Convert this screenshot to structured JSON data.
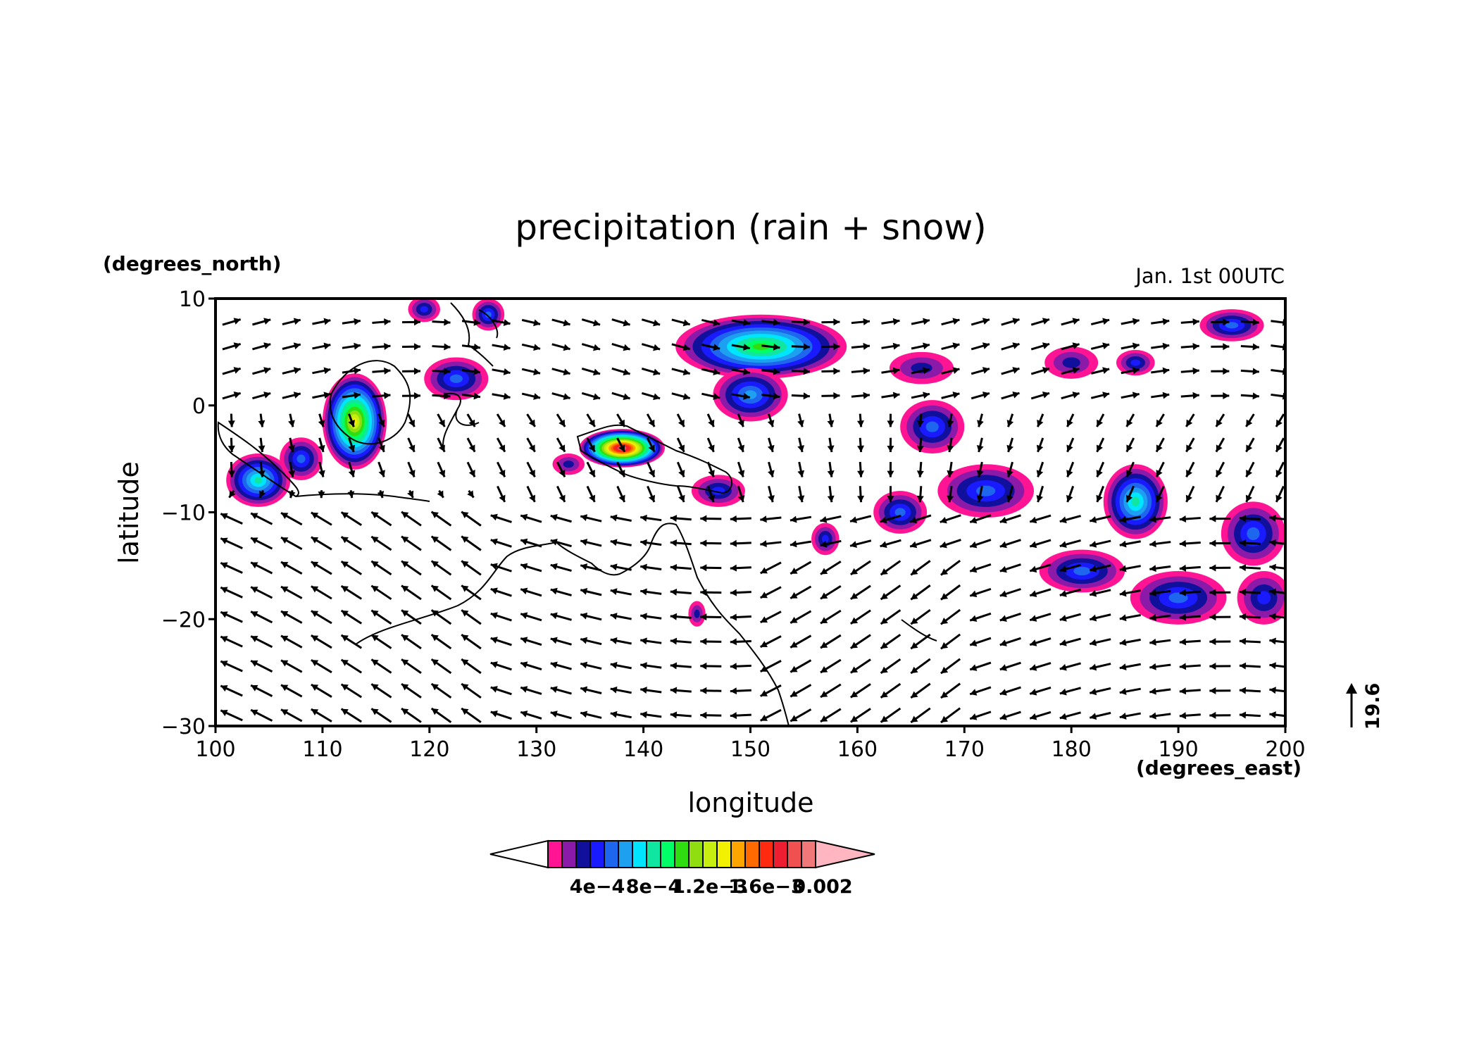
{
  "title": "precipitation (rain + snow)",
  "timestamp": "Jan. 1st 00UTC",
  "y_unit_label": "(degrees_north)",
  "x_unit_label": "(degrees_east)",
  "ylabel": "latitude",
  "xlabel": "longitude",
  "reference_vector_label": "19.6",
  "chart_data": {
    "type": "heatmap",
    "projection": "lon-lat",
    "xlim": [
      100,
      200
    ],
    "ylim": [
      -30,
      10
    ],
    "x_ticks": [
      100,
      110,
      120,
      130,
      140,
      150,
      160,
      170,
      180,
      190,
      200
    ],
    "x_tick_labels": [
      "100",
      "110",
      "120",
      "130",
      "140",
      "150",
      "160",
      "170",
      "180",
      "190",
      "200"
    ],
    "y_ticks": [
      -30,
      -20,
      -10,
      0,
      10
    ],
    "y_tick_labels": [
      "−30",
      "−20",
      "−10",
      "0",
      "10"
    ],
    "colorbar": {
      "levels": [
        0.0001,
        0.0002,
        0.0003,
        0.0004,
        0.0005,
        0.0006,
        0.0007,
        0.0008,
        0.0009,
        0.001,
        0.0011,
        0.0012,
        0.0013,
        0.0014,
        0.0015,
        0.0016,
        0.0017,
        0.0018,
        0.0019,
        0.002
      ],
      "tick_labels": [
        "4e−4",
        "8e−4",
        "1.2e−3",
        "1.6e−3",
        "0.002"
      ],
      "tick_values": [
        0.0004,
        0.0008,
        0.0012,
        0.0016,
        0.002
      ],
      "under_color": "#ffffff",
      "over_color": "#ffb6c1",
      "colors": [
        "#ff1493",
        "#8b1aa8",
        "#10109c",
        "#1a1aff",
        "#1e66ee",
        "#1ea0f0",
        "#00e5ff",
        "#10e6a0",
        "#00ff66",
        "#30dd10",
        "#90dd10",
        "#c6ee10",
        "#f0f000",
        "#ffa500",
        "#ff6a00",
        "#ff2a10",
        "#ee1e32",
        "#f05050",
        "#f07878",
        "#f4a0a0"
      ]
    },
    "precipitation_cells": [
      {
        "lon": 113.0,
        "lat": -1.5,
        "rx": 3.0,
        "ry": 4.5,
        "peak": 0.0013
      },
      {
        "lon": 138.0,
        "lat": -4.0,
        "rx": 4.0,
        "ry": 1.8,
        "peak": 0.0019
      },
      {
        "lon": 151.0,
        "lat": 5.5,
        "rx": 8.0,
        "ry": 3.0,
        "peak": 0.001
      },
      {
        "lon": 150.0,
        "lat": 1.0,
        "rx": 3.5,
        "ry": 2.5,
        "peak": 0.0006
      },
      {
        "lon": 104.0,
        "lat": -7.0,
        "rx": 3.0,
        "ry": 2.5,
        "peak": 0.0008
      },
      {
        "lon": 108.0,
        "lat": -5.0,
        "rx": 2.0,
        "ry": 2.0,
        "peak": 0.0005
      },
      {
        "lon": 122.5,
        "lat": 2.5,
        "rx": 3.0,
        "ry": 2.0,
        "peak": 0.0005
      },
      {
        "lon": 125.5,
        "lat": 8.5,
        "rx": 1.5,
        "ry": 1.5,
        "peak": 0.0005
      },
      {
        "lon": 147.0,
        "lat": -8.0,
        "rx": 2.5,
        "ry": 1.5,
        "peak": 0.0004
      },
      {
        "lon": 167.0,
        "lat": -2.0,
        "rx": 3.0,
        "ry": 2.5,
        "peak": 0.0005
      },
      {
        "lon": 172.0,
        "lat": -8.0,
        "rx": 4.5,
        "ry": 2.5,
        "peak": 0.0005
      },
      {
        "lon": 164.0,
        "lat": -10.0,
        "rx": 2.5,
        "ry": 2.0,
        "peak": 0.0005
      },
      {
        "lon": 186.0,
        "lat": -9.0,
        "rx": 3.0,
        "ry": 3.5,
        "peak": 0.0008
      },
      {
        "lon": 181.0,
        "lat": -15.5,
        "rx": 4.0,
        "ry": 2.0,
        "peak": 0.0005
      },
      {
        "lon": 190.0,
        "lat": -18.0,
        "rx": 4.5,
        "ry": 2.5,
        "peak": 0.0005
      },
      {
        "lon": 197.0,
        "lat": -12.0,
        "rx": 3.0,
        "ry": 3.0,
        "peak": 0.0005
      },
      {
        "lon": 198.0,
        "lat": -18.0,
        "rx": 2.5,
        "ry": 2.5,
        "peak": 0.0004
      },
      {
        "lon": 195.0,
        "lat": 7.5,
        "rx": 3.0,
        "ry": 1.5,
        "peak": 0.0005
      },
      {
        "lon": 157.0,
        "lat": -12.5,
        "rx": 1.3,
        "ry": 1.5,
        "peak": 0.0004
      },
      {
        "lon": 145.0,
        "lat": -19.5,
        "rx": 0.8,
        "ry": 1.2,
        "peak": 0.0003
      },
      {
        "lon": 180.0,
        "lat": 4.0,
        "rx": 2.5,
        "ry": 1.5,
        "peak": 0.0003
      },
      {
        "lon": 186.0,
        "lat": 4.0,
        "rx": 1.8,
        "ry": 1.2,
        "peak": 0.0004
      },
      {
        "lon": 166.0,
        "lat": 3.5,
        "rx": 3.0,
        "ry": 1.5,
        "peak": 0.0003
      },
      {
        "lon": 133.0,
        "lat": -5.5,
        "rx": 1.5,
        "ry": 1.0,
        "peak": 0.0003
      },
      {
        "lon": 119.5,
        "lat": 9.0,
        "rx": 1.5,
        "ry": 1.2,
        "peak": 0.0004
      }
    ],
    "vector_reference_magnitude": 19.6,
    "wind_vectors": "dense grid of arrows covering the map domain (approximate flow: easterlies south of 10S, westerlies across 10N-0 near 140-160E)"
  }
}
